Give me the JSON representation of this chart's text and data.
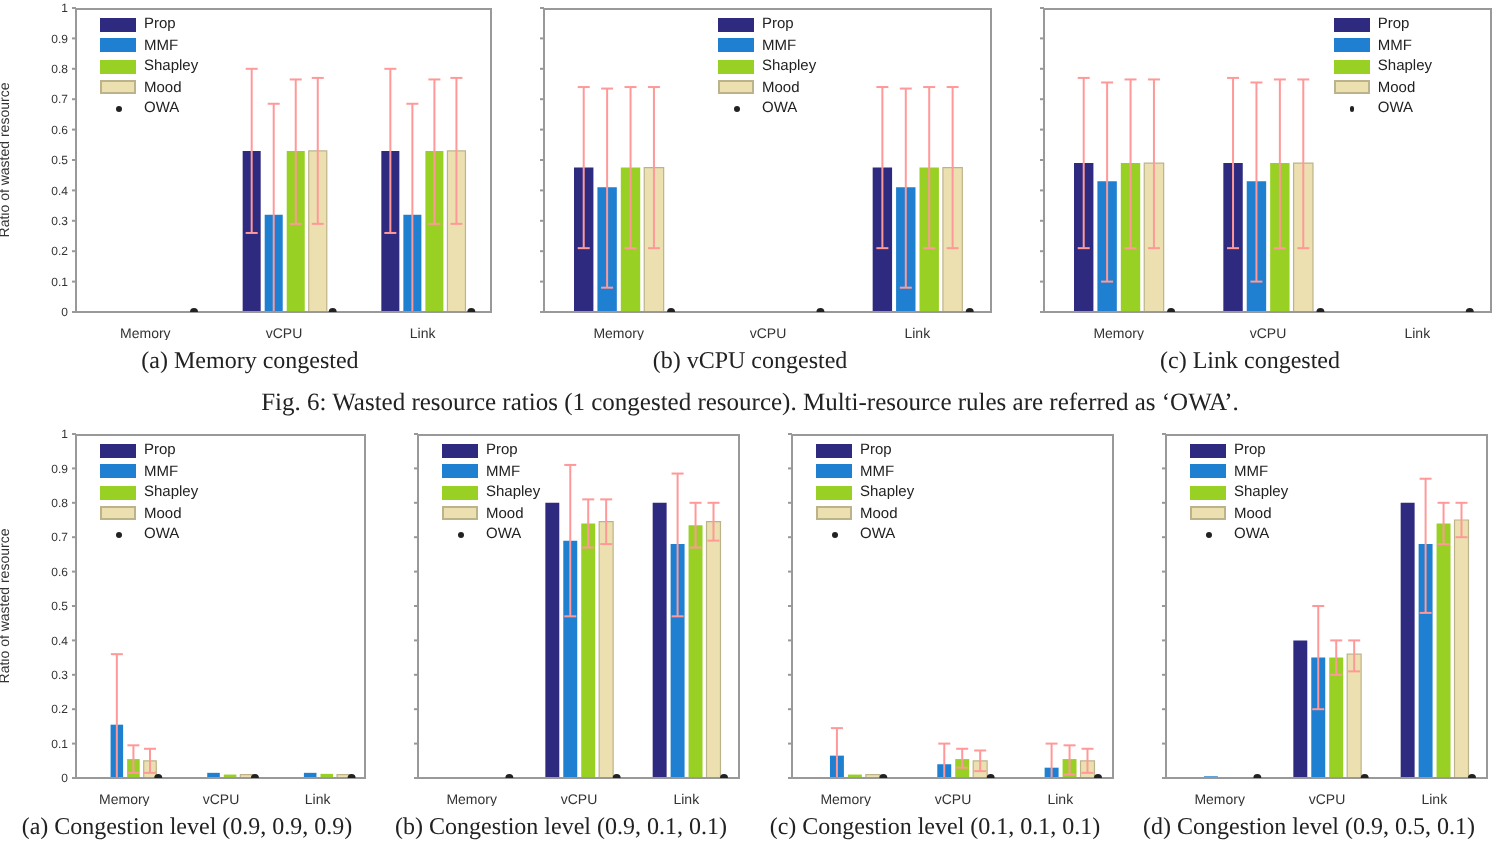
{
  "chart_data": [
    {
      "type": "bar",
      "title": "(a) Memory congested",
      "ylabel": "Ratio of wasted resource",
      "categories": [
        "Memory",
        "vCPU",
        "Link"
      ],
      "ylim": [
        0,
        1
      ],
      "yticks": [
        0,
        0.1,
        0.2,
        0.3,
        0.4,
        0.5,
        0.6,
        0.7,
        0.8,
        0.9,
        1
      ],
      "grid": false,
      "legend": "top left",
      "series": [
        {
          "name": "Prop",
          "color": "#2e2a7f",
          "values": [
            0,
            0.53,
            0.53
          ],
          "errors": [
            null,
            [
              0.26,
              0.8
            ],
            [
              0.26,
              0.8
            ]
          ]
        },
        {
          "name": "MMF",
          "color": "#1f7fd0",
          "values": [
            0,
            0.32,
            0.32
          ],
          "errors": [
            null,
            [
              0,
              0.685
            ],
            [
              0,
              0.685
            ]
          ]
        },
        {
          "name": "Shapley",
          "color": "#99d024",
          "values": [
            0,
            0.53,
            0.53
          ],
          "errors": [
            null,
            [
              0.29,
              0.765
            ],
            [
              0.29,
              0.765
            ]
          ]
        },
        {
          "name": "Mood",
          "color": "#ece0b0",
          "values": [
            0,
            0.53,
            0.53
          ],
          "errors": [
            null,
            [
              0.29,
              0.77
            ],
            [
              0.29,
              0.77
            ]
          ]
        },
        {
          "name": "OWA",
          "type": "scatter",
          "marker": "circle",
          "color": "#222222",
          "values": [
            0,
            0,
            0
          ]
        }
      ]
    },
    {
      "type": "bar",
      "title": "(b) vCPU congested",
      "annotations": [
        "Fig. 6: Wasted resource ratios (1 congested resource). Multi-resource rules are referred as ‘OWA’."
      ],
      "categories": [
        "Memory",
        "vCPU",
        "Link"
      ],
      "ylim": [
        0,
        1
      ],
      "yticks": [
        0,
        0.1,
        0.2,
        0.3,
        0.4,
        0.5,
        0.6,
        0.7,
        0.8,
        0.9,
        1
      ],
      "tick_labels": "x",
      "grid": false,
      "legend": "top",
      "series": [
        {
          "name": "Prop",
          "color": "#2e2a7f",
          "values": [
            0.475,
            0,
            0.475
          ],
          "errors": [
            [
              0.21,
              0.74
            ],
            null,
            [
              0.21,
              0.74
            ]
          ]
        },
        {
          "name": "MMF",
          "color": "#1f7fd0",
          "values": [
            0.41,
            0,
            0.41
          ],
          "errors": [
            [
              0.08,
              0.735
            ],
            null,
            [
              0.08,
              0.735
            ]
          ]
        },
        {
          "name": "Shapley",
          "color": "#99d024",
          "values": [
            0.475,
            0,
            0.475
          ],
          "errors": [
            [
              0.21,
              0.74
            ],
            null,
            [
              0.21,
              0.74
            ]
          ]
        },
        {
          "name": "Mood",
          "color": "#ece0b0",
          "values": [
            0.475,
            0,
            0.475
          ],
          "errors": [
            [
              0.21,
              0.74
            ],
            null,
            [
              0.21,
              0.74
            ]
          ]
        },
        {
          "name": "OWA",
          "type": "scatter",
          "marker": "circle",
          "color": "#222222",
          "values": [
            0,
            0,
            0
          ]
        }
      ]
    },
    {
      "type": "bar",
      "title": "(c) Link congested",
      "categories": [
        "Memory",
        "vCPU",
        "Link"
      ],
      "ylim": [
        0,
        1
      ],
      "yticks": [
        0,
        0.1,
        0.2,
        0.3,
        0.4,
        0.5,
        0.6,
        0.7,
        0.8,
        0.9,
        1
      ],
      "tick_labels": "x",
      "grid": false,
      "legend": "top right",
      "series": [
        {
          "name": "Prop",
          "color": "#2e2a7f",
          "values": [
            0.49,
            0.49,
            0
          ],
          "errors": [
            [
              0.21,
              0.77
            ],
            [
              0.21,
              0.77
            ],
            null
          ]
        },
        {
          "name": "MMF",
          "color": "#1f7fd0",
          "values": [
            0.43,
            0.43,
            0
          ],
          "errors": [
            [
              0.1,
              0.755
            ],
            [
              0.1,
              0.755
            ],
            null
          ]
        },
        {
          "name": "Shapley",
          "color": "#99d024",
          "values": [
            0.49,
            0.49,
            0
          ],
          "errors": [
            [
              0.21,
              0.765
            ],
            [
              0.21,
              0.765
            ],
            null
          ]
        },
        {
          "name": "Mood",
          "color": "#ece0b0",
          "values": [
            0.49,
            0.49,
            0
          ],
          "errors": [
            [
              0.21,
              0.765
            ],
            [
              0.21,
              0.765
            ],
            null
          ]
        },
        {
          "name": "OWA",
          "type": "scatter",
          "marker": "circle",
          "color": "#222222",
          "values": [
            0,
            0,
            0
          ]
        }
      ]
    },
    {
      "type": "bar",
      "title": "(a) Congestion level (0.9, 0.9, 0.9)",
      "ylabel": "Ratio of wasted resource",
      "categories": [
        "Memory",
        "vCPU",
        "Link"
      ],
      "ylim": [
        0,
        1
      ],
      "yticks": [
        0,
        0.1,
        0.2,
        0.3,
        0.4,
        0.5,
        0.6,
        0.7,
        0.8,
        0.9,
        1
      ],
      "grid": false,
      "legend": "top left",
      "series": [
        {
          "name": "Prop",
          "color": "#2e2a7f",
          "values": [
            0,
            0,
            0
          ]
        },
        {
          "name": "MMF",
          "color": "#1f7fd0",
          "values": [
            0.155,
            0.015,
            0.015
          ],
          "errors": [
            [
              0,
              0.36
            ],
            null,
            null
          ]
        },
        {
          "name": "Shapley",
          "color": "#99d024",
          "values": [
            0.055,
            0.01,
            0.012
          ],
          "errors": [
            [
              0.015,
              0.095
            ],
            null,
            null
          ]
        },
        {
          "name": "Mood",
          "color": "#ece0b0",
          "values": [
            0.05,
            0.01,
            0.01
          ],
          "errors": [
            [
              0.015,
              0.085
            ],
            null,
            null
          ]
        },
        {
          "name": "OWA",
          "type": "scatter",
          "marker": "circle",
          "color": "#222222",
          "values": [
            0,
            0,
            0
          ]
        }
      ]
    },
    {
      "type": "bar",
      "title": "(b) Congestion level (0.9, 0.1, 0.1)",
      "categories": [
        "Memory",
        "vCPU",
        "Link"
      ],
      "ylim": [
        0,
        1
      ],
      "yticks": [
        0,
        0.1,
        0.2,
        0.3,
        0.4,
        0.5,
        0.6,
        0.7,
        0.8,
        0.9,
        1
      ],
      "tick_labels": "x",
      "grid": false,
      "legend": "top left",
      "series": [
        {
          "name": "Prop",
          "color": "#2e2a7f",
          "values": [
            0,
            0.8,
            0.8
          ]
        },
        {
          "name": "MMF",
          "color": "#1f7fd0",
          "values": [
            0,
            0.69,
            0.68
          ],
          "errors": [
            null,
            [
              0.47,
              0.91
            ],
            [
              0.47,
              0.885
            ]
          ]
        },
        {
          "name": "Shapley",
          "color": "#99d024",
          "values": [
            0,
            0.74,
            0.735
          ],
          "errors": [
            null,
            [
              0.67,
              0.81
            ],
            [
              0.67,
              0.8
            ]
          ]
        },
        {
          "name": "Mood",
          "color": "#ece0b0",
          "values": [
            0,
            0.745,
            0.745
          ],
          "errors": [
            null,
            [
              0.68,
              0.81
            ],
            [
              0.69,
              0.8
            ]
          ]
        },
        {
          "name": "OWA",
          "type": "scatter",
          "marker": "circle",
          "color": "#222222",
          "values": [
            0,
            0,
            0
          ]
        }
      ]
    },
    {
      "type": "bar",
      "title": "(c) Congestion level (0.1, 0.1, 0.1)",
      "categories": [
        "Memory",
        "vCPU",
        "Link"
      ],
      "ylim": [
        0,
        1
      ],
      "yticks": [
        0,
        0.1,
        0.2,
        0.3,
        0.4,
        0.5,
        0.6,
        0.7,
        0.8,
        0.9,
        1
      ],
      "tick_labels": "x",
      "grid": false,
      "legend": "top left",
      "series": [
        {
          "name": "Prop",
          "color": "#2e2a7f",
          "values": [
            0,
            0,
            0
          ]
        },
        {
          "name": "MMF",
          "color": "#1f7fd0",
          "values": [
            0.065,
            0.04,
            0.03
          ],
          "errors": [
            [
              0,
              0.145
            ],
            [
              0,
              0.1
            ],
            [
              0,
              0.1
            ]
          ]
        },
        {
          "name": "Shapley",
          "color": "#99d024",
          "values": [
            0.01,
            0.055,
            0.055
          ],
          "errors": [
            null,
            [
              0.03,
              0.085
            ],
            [
              0.01,
              0.095
            ]
          ]
        },
        {
          "name": "Mood",
          "color": "#ece0b0",
          "values": [
            0.01,
            0.05,
            0.05
          ],
          "errors": [
            null,
            [
              0.02,
              0.08
            ],
            [
              0.015,
              0.085
            ]
          ]
        },
        {
          "name": "OWA",
          "type": "scatter",
          "marker": "circle",
          "color": "#222222",
          "values": [
            0,
            0,
            0
          ]
        }
      ]
    },
    {
      "type": "bar",
      "title": "(d) Congestion level (0.9, 0.5, 0.1)",
      "categories": [
        "Memory",
        "vCPU",
        "Link"
      ],
      "ylim": [
        0,
        1
      ],
      "yticks": [
        0,
        0.1,
        0.2,
        0.3,
        0.4,
        0.5,
        0.6,
        0.7,
        0.8,
        0.9,
        1
      ],
      "tick_labels": "x",
      "grid": false,
      "legend": "top left",
      "series": [
        {
          "name": "Prop",
          "color": "#2e2a7f",
          "values": [
            0,
            0.4,
            0.8
          ]
        },
        {
          "name": "MMF",
          "color": "#1f7fd0",
          "values": [
            0.005,
            0.35,
            0.68
          ],
          "errors": [
            null,
            [
              0.2,
              0.5
            ],
            [
              0.48,
              0.87
            ]
          ]
        },
        {
          "name": "Shapley",
          "color": "#99d024",
          "values": [
            0,
            0.35,
            0.74
          ],
          "errors": [
            null,
            [
              0.3,
              0.4
            ],
            [
              0.68,
              0.8
            ]
          ]
        },
        {
          "name": "Mood",
          "color": "#ece0b0",
          "values": [
            0,
            0.36,
            0.75
          ],
          "errors": [
            null,
            [
              0.31,
              0.4
            ],
            [
              0.7,
              0.8
            ]
          ]
        },
        {
          "name": "OWA",
          "type": "scatter",
          "marker": "circle",
          "color": "#222222",
          "values": [
            0,
            0,
            0
          ]
        }
      ]
    }
  ]
}
